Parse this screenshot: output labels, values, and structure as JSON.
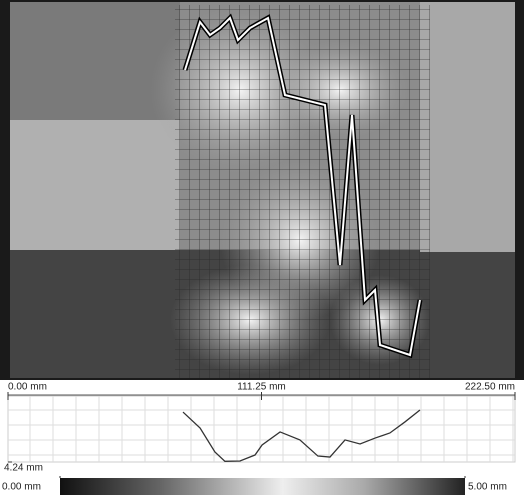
{
  "chart_data": {
    "type": "line",
    "x": [
      76.8,
      84.3,
      90.8,
      95.2,
      101.8,
      108.4,
      111.5,
      119.4,
      128.1,
      136.0,
      141.3,
      147.9,
      154.5,
      161.1,
      167.6,
      174.2,
      180.8
    ],
    "values": [
      1.3,
      2.24,
      3.65,
      4.2,
      4.18,
      3.83,
      3.24,
      2.47,
      2.94,
      3.89,
      3.95,
      2.94,
      3.18,
      2.83,
      2.53,
      1.88,
      1.18
    ],
    "color": "#333333",
    "xlim": [
      0,
      222.5
    ],
    "xticks": [
      {
        "value": 0,
        "label": "0.00 mm"
      },
      {
        "value": 111.25,
        "label": "111.25 mm"
      },
      {
        "value": 222.5,
        "label": "222.50 mm"
      }
    ],
    "ylim": [
      4.24,
      0
    ],
    "yticks": [
      {
        "value": 4.24,
        "label": "4.24 mm"
      }
    ]
  },
  "colorbar": {
    "ticks": [
      {
        "value": 0,
        "label": "0.00 mm"
      },
      {
        "value": 5,
        "label": "5.00 mm"
      }
    ]
  }
}
